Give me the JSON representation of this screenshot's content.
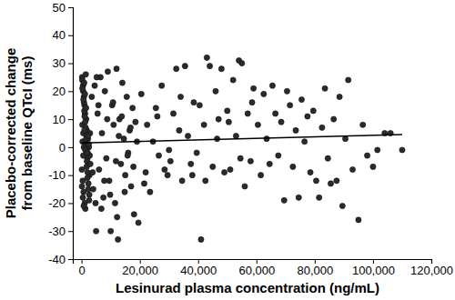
{
  "chart_data": {
    "type": "scatter",
    "xlabel": "Lesinurad plasma concentration (ng/mL)",
    "ylabel": [
      "Placebo-corrected change",
      "from baseline QTcI (ms)"
    ],
    "xlim": [
      -3000,
      120000
    ],
    "ylim": [
      -40,
      50
    ],
    "xticks": [
      0,
      {
        "value": 20000,
        "label": "20,000"
      },
      {
        "value": 40000,
        "label": "40,000"
      },
      {
        "value": 60000,
        "label": "60,000"
      },
      {
        "value": 80000,
        "label": "80,000"
      },
      {
        "value": 100000,
        "label": "100,000"
      },
      {
        "value": 120000,
        "label": "120,000"
      }
    ],
    "yticks": [
      -40,
      -30,
      -20,
      -10,
      0,
      10,
      20,
      30,
      40,
      50
    ],
    "grid": false,
    "series": [
      {
        "type": "scatter",
        "marker": "circle",
        "color": "#2b2b2b",
        "x": [
          200,
          500,
          800,
          1000,
          1200,
          300,
          600,
          900,
          1500,
          2000,
          100,
          400,
          700,
          1100,
          1300,
          1600,
          1800,
          2200,
          2500,
          2800,
          250,
          550,
          850,
          1050,
          1400,
          1700,
          1900,
          2100,
          2400,
          2700,
          150,
          450,
          750,
          950,
          1250,
          1550,
          1850,
          2050,
          2350,
          2650,
          300,
          650,
          900,
          1150,
          1450,
          1750,
          2000,
          2300,
          2600,
          2900,
          350,
          600,
          800,
          1000,
          1300,
          1600,
          1900,
          2200,
          2500,
          3000,
          3500,
          4000,
          4500,
          5000,
          5500,
          6000,
          6500,
          7000,
          7500,
          8000,
          8500,
          9000,
          9500,
          10000,
          10500,
          11000,
          11500,
          12000,
          12500,
          13000,
          13500,
          14000,
          14500,
          15000,
          15500,
          16000,
          16500,
          17000,
          17500,
          18000,
          18500,
          19000,
          19500,
          3800,
          4800,
          5800,
          6800,
          7800,
          8800,
          9800,
          10800,
          11800,
          12800,
          13800,
          14800,
          15800,
          16800,
          17800,
          5200,
          12200,
          20500,
          21500,
          22500,
          23500,
          24500,
          25500,
          26500,
          27500,
          28500,
          29500,
          30500,
          31500,
          32500,
          33500,
          34500,
          35500,
          36500,
          37500,
          38500,
          39500,
          40500,
          41000,
          42000,
          43000,
          44000,
          45000,
          46000,
          47000,
          48000,
          49000,
          50000,
          51000,
          52000,
          53000,
          54000,
          55000,
          56000,
          57000,
          58000,
          59000,
          22000,
          26000,
          30000,
          34000,
          38000,
          42500,
          46500,
          50500,
          54500,
          58500,
          60500,
          61500,
          62500,
          63500,
          64500,
          65500,
          66500,
          67500,
          68500,
          69500,
          70500,
          71500,
          72500,
          73500,
          74500,
          75500,
          76500,
          77500,
          78500,
          79500,
          80500,
          81500,
          82500,
          83500,
          84500,
          85500,
          86500,
          87500,
          88500,
          89500,
          90500,
          91500,
          93000,
          95000,
          96500,
          98000,
          100000,
          101500,
          104000,
          106000,
          110000
        ],
        "values": [
          25,
          22,
          18,
          15,
          12,
          8,
          5,
          2,
          -1,
          -4,
          -8,
          -12,
          -16,
          -20,
          -22,
          10,
          6,
          3,
          0,
          -3,
          24,
          20,
          16,
          11,
          7,
          4,
          1,
          -2,
          -6,
          -10,
          -14,
          -18,
          -21,
          13,
          9,
          14,
          -5,
          -9,
          -13,
          -17,
          21,
          17,
          23,
          19,
          26,
          -7,
          -11,
          -15,
          -19,
          5,
          2,
          -3,
          0,
          6,
          -1,
          3,
          -2,
          4,
          1,
          -6,
          18,
          -15,
          22,
          -30,
          12,
          -8,
          25,
          5,
          -18,
          20,
          -4,
          27,
          -12,
          -30,
          15,
          8,
          -20,
          28,
          -33,
          10,
          -6,
          23,
          3,
          -10,
          18,
          -2,
          6,
          -14,
          14,
          -24,
          9,
          2,
          -27,
          -9,
          -20,
          15,
          -22,
          -12,
          10,
          -17,
          16,
          -5,
          4,
          11,
          -16,
          -3,
          7,
          -7,
          25,
          -25,
          19,
          -13,
          8,
          -16,
          2,
          14,
          -3,
          22,
          -8,
          -10,
          -5,
          12,
          28,
          6,
          -12,
          29,
          4,
          -6,
          16,
          -2,
          15,
          -33,
          8,
          32,
          29,
          -7,
          20,
          10,
          28,
          -9,
          13,
          -8,
          24,
          4,
          31,
          30,
          -14,
          12,
          -5,
          21,
          -9,
          11,
          -1,
          18,
          -10,
          -12,
          3,
          9,
          -4,
          16,
          8,
          -10,
          19,
          3,
          -6,
          22,
          12,
          -3,
          9,
          -19,
          20,
          15,
          -7,
          6,
          -18,
          17,
          2,
          11,
          -9,
          13,
          -12,
          -18,
          7,
          21,
          -4,
          -13,
          10,
          -12,
          18,
          -21,
          3,
          24,
          -8,
          -26,
          8,
          -3,
          -7,
          -1,
          5,
          5,
          -1
        ]
      },
      {
        "type": "line",
        "line_style": "solid",
        "color": "#000000",
        "x": [
          0,
          110000
        ],
        "values": [
          1.5,
          4.5
        ]
      }
    ]
  }
}
